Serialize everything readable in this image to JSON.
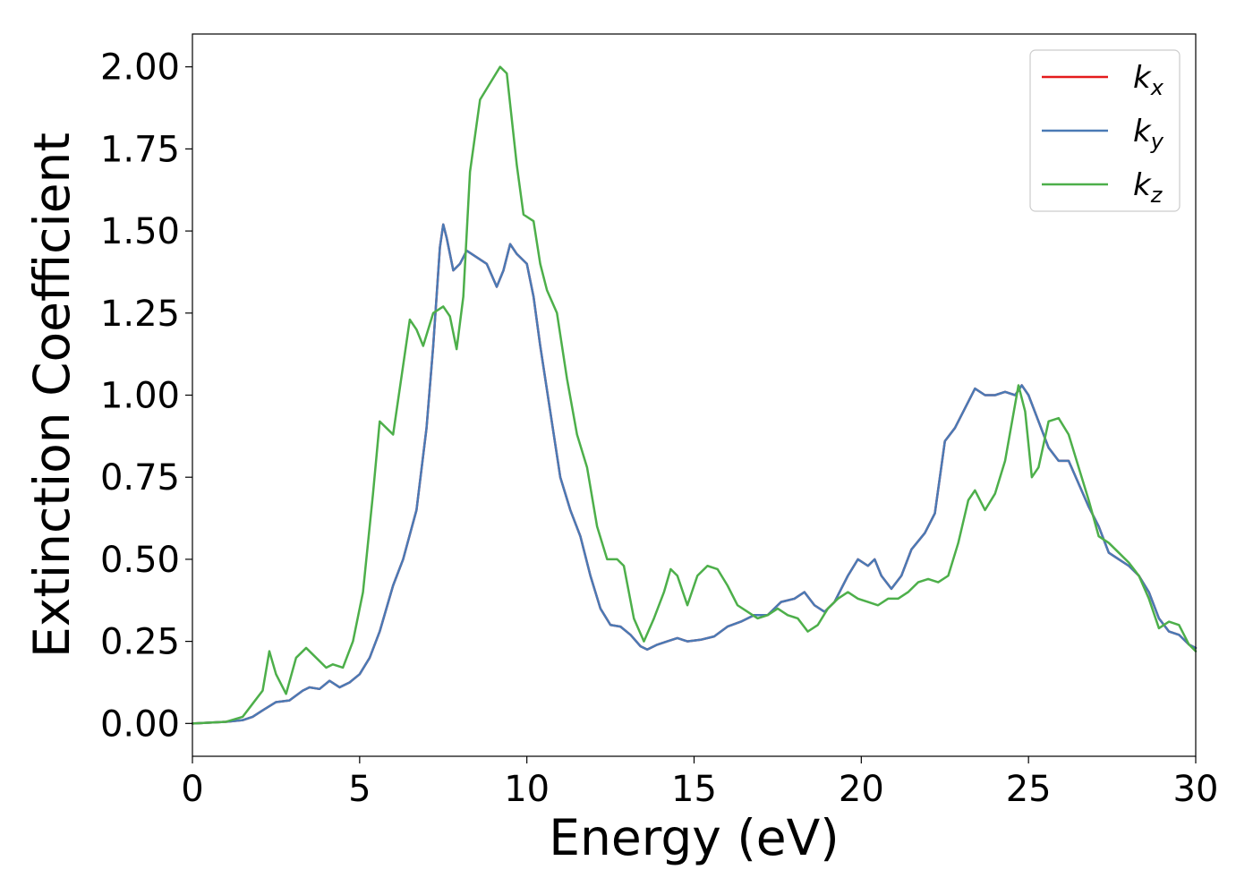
{
  "chart_data": {
    "type": "line",
    "title": "",
    "xlabel": "Energy (eV)",
    "ylabel": "Extinction Coefficient",
    "xlim": [
      0,
      30
    ],
    "ylim": [
      -0.1,
      2.1
    ],
    "xticks": [
      0,
      5,
      10,
      15,
      20,
      25,
      30
    ],
    "xtick_labels": [
      "0",
      "5",
      "10",
      "15",
      "20",
      "25",
      "30"
    ],
    "yticks": [
      0.0,
      0.25,
      0.5,
      0.75,
      1.0,
      1.25,
      1.5,
      1.75,
      2.0
    ],
    "ytick_labels": [
      "0.00",
      "0.25",
      "0.50",
      "0.75",
      "1.00",
      "1.25",
      "1.50",
      "1.75",
      "2.00"
    ],
    "grid": false,
    "legend": "top-right",
    "series": [
      {
        "name": "k",
        "subscript": "x",
        "color": "#e41a1c",
        "points": [
          [
            0,
            0
          ],
          [
            1,
            0.005
          ],
          [
            1.5,
            0.01
          ],
          [
            1.8,
            0.02
          ],
          [
            2.1,
            0.04
          ],
          [
            2.5,
            0.065
          ],
          [
            2.9,
            0.07
          ],
          [
            3.3,
            0.1
          ],
          [
            3.5,
            0.11
          ],
          [
            3.8,
            0.105
          ],
          [
            4.1,
            0.13
          ],
          [
            4.4,
            0.11
          ],
          [
            4.7,
            0.125
          ],
          [
            5,
            0.15
          ],
          [
            5.3,
            0.2
          ],
          [
            5.6,
            0.28
          ],
          [
            6,
            0.42
          ],
          [
            6.3,
            0.5
          ],
          [
            6.7,
            0.65
          ],
          [
            7,
            0.9
          ],
          [
            7.2,
            1.15
          ],
          [
            7.4,
            1.45
          ],
          [
            7.5,
            1.52
          ],
          [
            7.6,
            1.48
          ],
          [
            7.8,
            1.38
          ],
          [
            8,
            1.4
          ],
          [
            8.2,
            1.44
          ],
          [
            8.5,
            1.42
          ],
          [
            8.8,
            1.4
          ],
          [
            9.1,
            1.33
          ],
          [
            9.3,
            1.38
          ],
          [
            9.5,
            1.46
          ],
          [
            9.7,
            1.43
          ],
          [
            10,
            1.4
          ],
          [
            10.2,
            1.3
          ],
          [
            10.4,
            1.15
          ],
          [
            10.7,
            0.95
          ],
          [
            11,
            0.75
          ],
          [
            11.3,
            0.65
          ],
          [
            11.6,
            0.57
          ],
          [
            11.9,
            0.45
          ],
          [
            12.2,
            0.35
          ],
          [
            12.5,
            0.3
          ],
          [
            12.8,
            0.295
          ],
          [
            13.1,
            0.27
          ],
          [
            13.4,
            0.235
          ],
          [
            13.6,
            0.225
          ],
          [
            13.9,
            0.24
          ],
          [
            14.2,
            0.25
          ],
          [
            14.5,
            0.26
          ],
          [
            14.8,
            0.25
          ],
          [
            15.2,
            0.255
          ],
          [
            15.6,
            0.265
          ],
          [
            16,
            0.295
          ],
          [
            16.4,
            0.31
          ],
          [
            16.8,
            0.33
          ],
          [
            17.2,
            0.33
          ],
          [
            17.6,
            0.37
          ],
          [
            18,
            0.38
          ],
          [
            18.3,
            0.4
          ],
          [
            18.6,
            0.36
          ],
          [
            18.9,
            0.34
          ],
          [
            19.2,
            0.37
          ],
          [
            19.6,
            0.45
          ],
          [
            19.9,
            0.5
          ],
          [
            20.2,
            0.48
          ],
          [
            20.4,
            0.5
          ],
          [
            20.6,
            0.45
          ],
          [
            20.9,
            0.41
          ],
          [
            21.2,
            0.45
          ],
          [
            21.5,
            0.53
          ],
          [
            21.9,
            0.58
          ],
          [
            22.2,
            0.64
          ],
          [
            22.5,
            0.86
          ],
          [
            22.8,
            0.9
          ],
          [
            23.1,
            0.96
          ],
          [
            23.4,
            1.02
          ],
          [
            23.7,
            1.0
          ],
          [
            24,
            1.0
          ],
          [
            24.3,
            1.01
          ],
          [
            24.6,
            1.0
          ],
          [
            24.8,
            1.03
          ],
          [
            25,
            1.0
          ],
          [
            25.3,
            0.92
          ],
          [
            25.6,
            0.84
          ],
          [
            25.9,
            0.8
          ],
          [
            26.2,
            0.8
          ],
          [
            26.5,
            0.73
          ],
          [
            26.8,
            0.66
          ],
          [
            27.1,
            0.6
          ],
          [
            27.4,
            0.52
          ],
          [
            27.7,
            0.5
          ],
          [
            28,
            0.48
          ],
          [
            28.3,
            0.45
          ],
          [
            28.6,
            0.4
          ],
          [
            28.9,
            0.32
          ],
          [
            29.2,
            0.28
          ],
          [
            29.5,
            0.27
          ],
          [
            29.8,
            0.24
          ],
          [
            30,
            0.23
          ]
        ]
      },
      {
        "name": "k",
        "subscript": "y",
        "color": "#4a7ab5",
        "points": [
          [
            0,
            0
          ],
          [
            1,
            0.005
          ],
          [
            1.5,
            0.01
          ],
          [
            1.8,
            0.02
          ],
          [
            2.1,
            0.04
          ],
          [
            2.5,
            0.065
          ],
          [
            2.9,
            0.07
          ],
          [
            3.3,
            0.1
          ],
          [
            3.5,
            0.11
          ],
          [
            3.8,
            0.105
          ],
          [
            4.1,
            0.13
          ],
          [
            4.4,
            0.11
          ],
          [
            4.7,
            0.125
          ],
          [
            5,
            0.15
          ],
          [
            5.3,
            0.2
          ],
          [
            5.6,
            0.28
          ],
          [
            6,
            0.42
          ],
          [
            6.3,
            0.5
          ],
          [
            6.7,
            0.65
          ],
          [
            7,
            0.9
          ],
          [
            7.2,
            1.15
          ],
          [
            7.4,
            1.45
          ],
          [
            7.5,
            1.52
          ],
          [
            7.6,
            1.48
          ],
          [
            7.8,
            1.38
          ],
          [
            8,
            1.4
          ],
          [
            8.2,
            1.44
          ],
          [
            8.5,
            1.42
          ],
          [
            8.8,
            1.4
          ],
          [
            9.1,
            1.33
          ],
          [
            9.3,
            1.38
          ],
          [
            9.5,
            1.46
          ],
          [
            9.7,
            1.43
          ],
          [
            10,
            1.4
          ],
          [
            10.2,
            1.3
          ],
          [
            10.4,
            1.15
          ],
          [
            10.7,
            0.95
          ],
          [
            11,
            0.75
          ],
          [
            11.3,
            0.65
          ],
          [
            11.6,
            0.57
          ],
          [
            11.9,
            0.45
          ],
          [
            12.2,
            0.35
          ],
          [
            12.5,
            0.3
          ],
          [
            12.8,
            0.295
          ],
          [
            13.1,
            0.27
          ],
          [
            13.4,
            0.235
          ],
          [
            13.6,
            0.225
          ],
          [
            13.9,
            0.24
          ],
          [
            14.2,
            0.25
          ],
          [
            14.5,
            0.26
          ],
          [
            14.8,
            0.25
          ],
          [
            15.2,
            0.255
          ],
          [
            15.6,
            0.265
          ],
          [
            16,
            0.295
          ],
          [
            16.4,
            0.31
          ],
          [
            16.8,
            0.33
          ],
          [
            17.2,
            0.33
          ],
          [
            17.6,
            0.37
          ],
          [
            18,
            0.38
          ],
          [
            18.3,
            0.4
          ],
          [
            18.6,
            0.36
          ],
          [
            18.9,
            0.34
          ],
          [
            19.2,
            0.37
          ],
          [
            19.6,
            0.45
          ],
          [
            19.9,
            0.5
          ],
          [
            20.2,
            0.48
          ],
          [
            20.4,
            0.5
          ],
          [
            20.6,
            0.45
          ],
          [
            20.9,
            0.41
          ],
          [
            21.2,
            0.45
          ],
          [
            21.5,
            0.53
          ],
          [
            21.9,
            0.58
          ],
          [
            22.2,
            0.64
          ],
          [
            22.5,
            0.86
          ],
          [
            22.8,
            0.9
          ],
          [
            23.1,
            0.96
          ],
          [
            23.4,
            1.02
          ],
          [
            23.7,
            1.0
          ],
          [
            24,
            1.0
          ],
          [
            24.3,
            1.01
          ],
          [
            24.6,
            1.0
          ],
          [
            24.8,
            1.03
          ],
          [
            25,
            1.0
          ],
          [
            25.3,
            0.92
          ],
          [
            25.6,
            0.84
          ],
          [
            25.9,
            0.8
          ],
          [
            26.2,
            0.8
          ],
          [
            26.5,
            0.73
          ],
          [
            26.8,
            0.66
          ],
          [
            27.1,
            0.6
          ],
          [
            27.4,
            0.52
          ],
          [
            27.7,
            0.5
          ],
          [
            28,
            0.48
          ],
          [
            28.3,
            0.45
          ],
          [
            28.6,
            0.4
          ],
          [
            28.9,
            0.32
          ],
          [
            29.2,
            0.28
          ],
          [
            29.5,
            0.27
          ],
          [
            29.8,
            0.24
          ],
          [
            30,
            0.23
          ]
        ]
      },
      {
        "name": "k",
        "subscript": "z",
        "color": "#4daf4a",
        "points": [
          [
            0,
            0
          ],
          [
            1,
            0.005
          ],
          [
            1.5,
            0.02
          ],
          [
            1.8,
            0.06
          ],
          [
            2.1,
            0.1
          ],
          [
            2.3,
            0.22
          ],
          [
            2.5,
            0.15
          ],
          [
            2.8,
            0.09
          ],
          [
            3.1,
            0.2
          ],
          [
            3.4,
            0.23
          ],
          [
            3.7,
            0.2
          ],
          [
            4,
            0.17
          ],
          [
            4.2,
            0.18
          ],
          [
            4.5,
            0.17
          ],
          [
            4.8,
            0.25
          ],
          [
            5.1,
            0.4
          ],
          [
            5.4,
            0.7
          ],
          [
            5.6,
            0.92
          ],
          [
            5.8,
            0.9
          ],
          [
            6,
            0.88
          ],
          [
            6.2,
            1.02
          ],
          [
            6.5,
            1.23
          ],
          [
            6.7,
            1.2
          ],
          [
            6.9,
            1.15
          ],
          [
            7.2,
            1.25
          ],
          [
            7.5,
            1.27
          ],
          [
            7.7,
            1.24
          ],
          [
            7.9,
            1.14
          ],
          [
            8.1,
            1.3
          ],
          [
            8.3,
            1.68
          ],
          [
            8.6,
            1.9
          ],
          [
            8.9,
            1.95
          ],
          [
            9.2,
            2.0
          ],
          [
            9.4,
            1.98
          ],
          [
            9.7,
            1.7
          ],
          [
            9.9,
            1.55
          ],
          [
            10.2,
            1.53
          ],
          [
            10.4,
            1.4
          ],
          [
            10.6,
            1.32
          ],
          [
            10.9,
            1.25
          ],
          [
            11.2,
            1.05
          ],
          [
            11.5,
            0.88
          ],
          [
            11.8,
            0.78
          ],
          [
            12.1,
            0.6
          ],
          [
            12.4,
            0.5
          ],
          [
            12.7,
            0.5
          ],
          [
            12.9,
            0.48
          ],
          [
            13.2,
            0.32
          ],
          [
            13.5,
            0.25
          ],
          [
            13.8,
            0.32
          ],
          [
            14.1,
            0.4
          ],
          [
            14.3,
            0.47
          ],
          [
            14.5,
            0.45
          ],
          [
            14.8,
            0.36
          ],
          [
            15.1,
            0.45
          ],
          [
            15.4,
            0.48
          ],
          [
            15.7,
            0.47
          ],
          [
            16,
            0.42
          ],
          [
            16.3,
            0.36
          ],
          [
            16.6,
            0.34
          ],
          [
            16.9,
            0.32
          ],
          [
            17.2,
            0.33
          ],
          [
            17.5,
            0.35
          ],
          [
            17.8,
            0.33
          ],
          [
            18.1,
            0.32
          ],
          [
            18.4,
            0.28
          ],
          [
            18.7,
            0.3
          ],
          [
            19,
            0.35
          ],
          [
            19.3,
            0.38
          ],
          [
            19.6,
            0.4
          ],
          [
            19.9,
            0.38
          ],
          [
            20.2,
            0.37
          ],
          [
            20.5,
            0.36
          ],
          [
            20.8,
            0.38
          ],
          [
            21.1,
            0.38
          ],
          [
            21.4,
            0.4
          ],
          [
            21.7,
            0.43
          ],
          [
            22,
            0.44
          ],
          [
            22.3,
            0.43
          ],
          [
            22.6,
            0.45
          ],
          [
            22.9,
            0.55
          ],
          [
            23.2,
            0.68
          ],
          [
            23.4,
            0.71
          ],
          [
            23.7,
            0.65
          ],
          [
            24,
            0.7
          ],
          [
            24.3,
            0.8
          ],
          [
            24.7,
            1.03
          ],
          [
            24.9,
            0.95
          ],
          [
            25.1,
            0.75
          ],
          [
            25.3,
            0.78
          ],
          [
            25.6,
            0.92
          ],
          [
            25.9,
            0.93
          ],
          [
            26.2,
            0.88
          ],
          [
            26.5,
            0.78
          ],
          [
            26.8,
            0.68
          ],
          [
            27.1,
            0.57
          ],
          [
            27.4,
            0.55
          ],
          [
            27.7,
            0.52
          ],
          [
            28,
            0.49
          ],
          [
            28.3,
            0.45
          ],
          [
            28.6,
            0.38
          ],
          [
            28.9,
            0.29
          ],
          [
            29.2,
            0.31
          ],
          [
            29.5,
            0.3
          ],
          [
            29.8,
            0.24
          ],
          [
            30,
            0.22
          ]
        ]
      }
    ]
  }
}
